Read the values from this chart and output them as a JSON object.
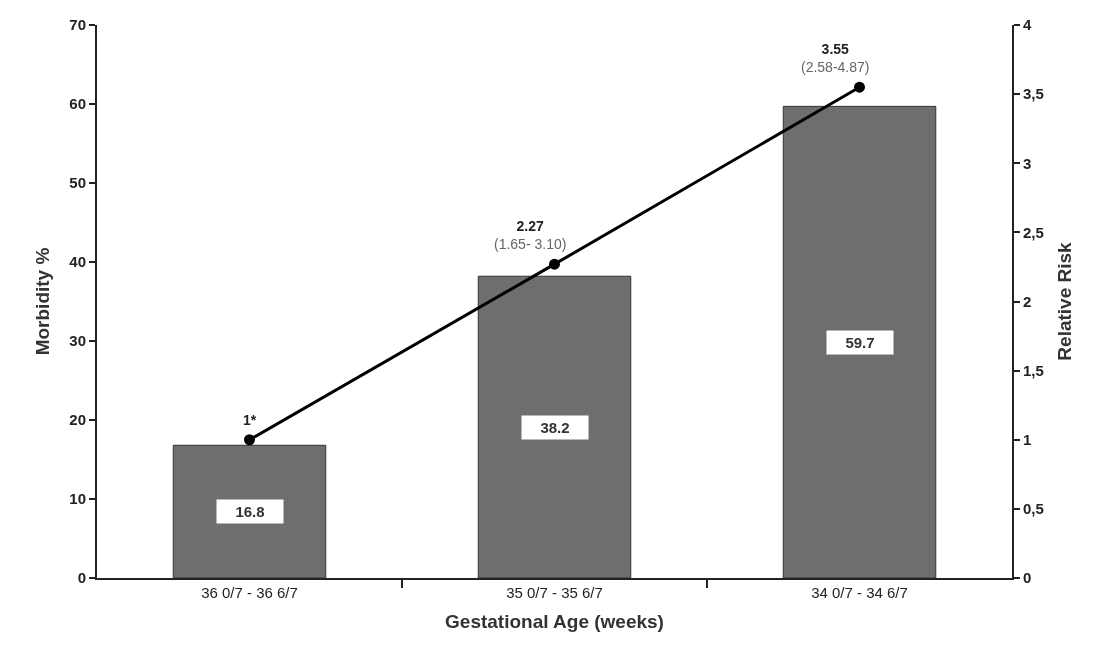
{
  "chart_data": {
    "type": "bar",
    "xlabel": "Gestational Age (weeks)",
    "ylabel": "Morbidity %",
    "y2label": "Relative Risk",
    "categories": [
      "36 0/7 - 36 6/7",
      "35 0/7 - 35 6/7",
      "34 0/7 - 34 6/7"
    ],
    "series": [
      {
        "color": "#6e6e6e",
        "values": [
          16.8,
          38.2,
          59.7
        ],
        "data_labels": true
      },
      {
        "type": "line",
        "axis": "y2",
        "color": "#000000",
        "values": [
          1,
          2.27,
          3.55
        ],
        "marker": "circle",
        "line_style": "solid",
        "value_labels": [
          "1*",
          "2.27\n(1.65- 3.10)",
          "3.55\n(2.58-4.87)"
        ]
      }
    ],
    "ylim": [
      0,
      70
    ],
    "yticks": [
      0,
      10,
      20,
      30,
      40,
      50,
      60,
      70
    ],
    "y2lim": [
      0,
      4
    ],
    "y2ticks": [
      0,
      {
        "value": 0.5,
        "label": "0,5"
      },
      1,
      {
        "value": 1.5,
        "label": "1,5"
      },
      2,
      {
        "value": 2.5,
        "label": "2,5"
      },
      3,
      {
        "value": 3.5,
        "label": "3,5"
      },
      4
    ]
  }
}
